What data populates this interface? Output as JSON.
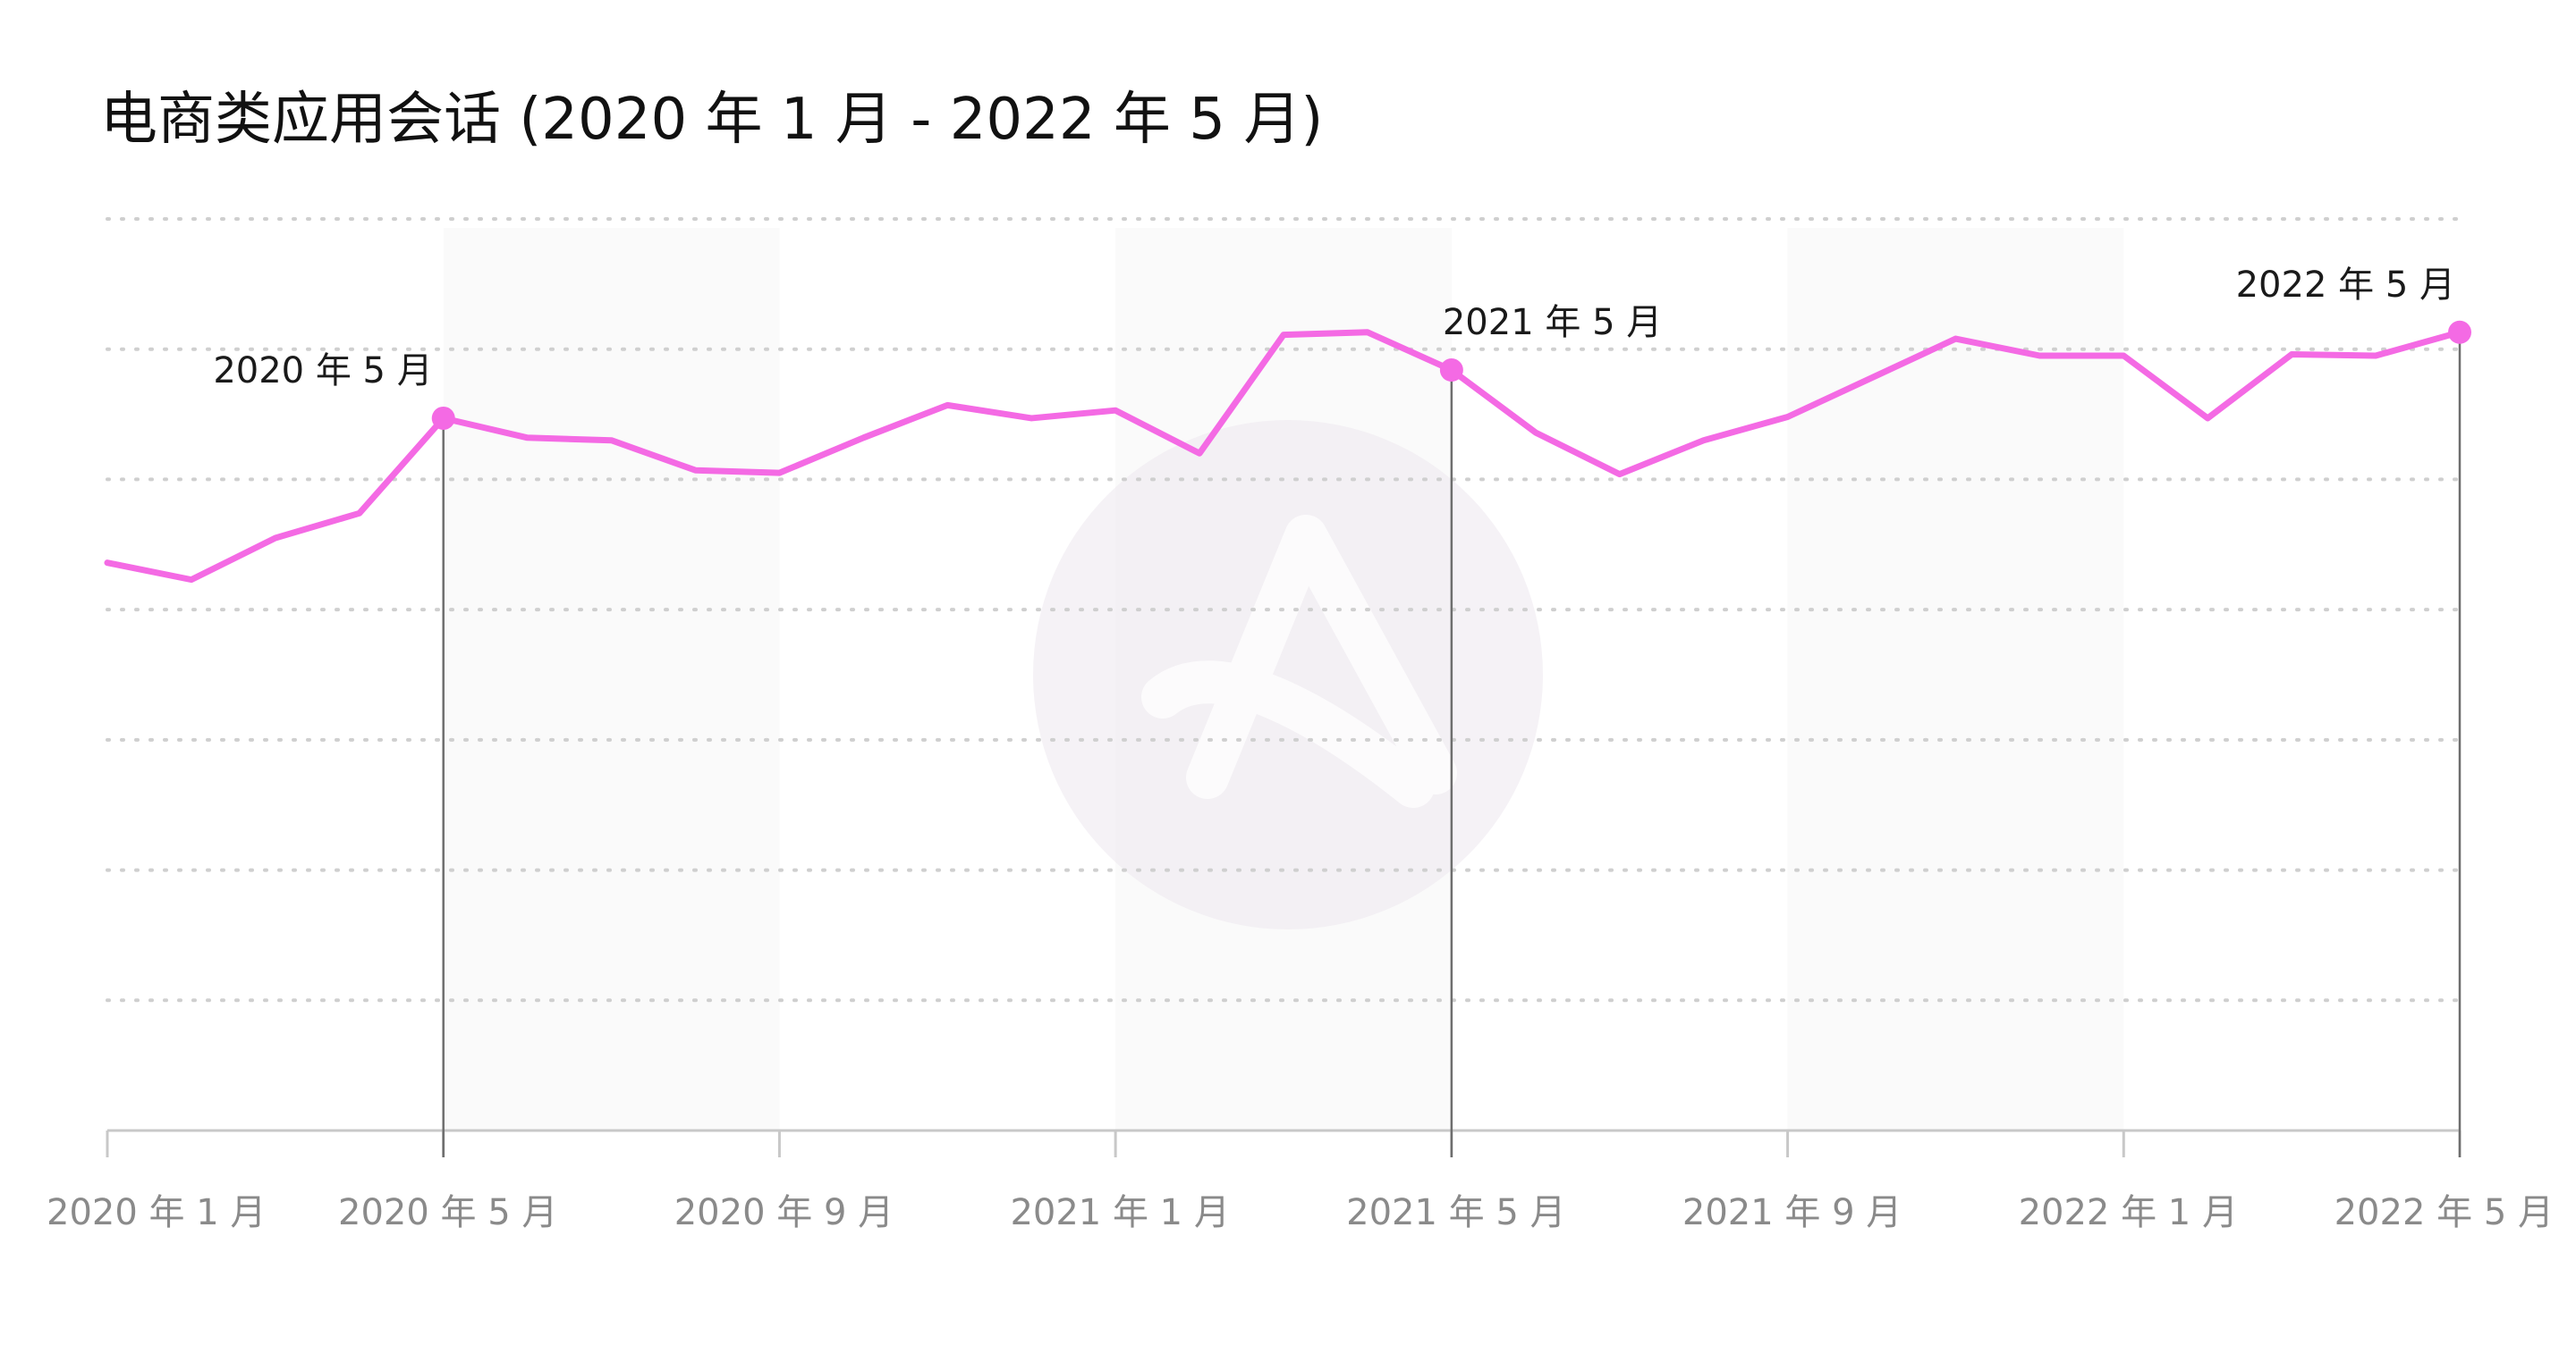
{
  "chart_data": {
    "type": "line",
    "title": "电商类应用会话 (2020 年 1 月 - 2022 年 5 月)",
    "xlabel": "",
    "ylabel": "",
    "y_tick_labels_shown": false,
    "grid": true,
    "colors": {
      "series": "#f46ae4",
      "band": "#fafafa",
      "watermark": "#ece7ee"
    },
    "x_ticks": [
      {
        "label": "2020 年 1 月",
        "index": 0
      },
      {
        "label": "2020 年 5 月",
        "index": 4
      },
      {
        "label": "2020 年 9 月",
        "index": 8
      },
      {
        "label": "2021 年 1 月",
        "index": 12
      },
      {
        "label": "2021 年 5 月",
        "index": 16
      },
      {
        "label": "2021 年 9 月",
        "index": 20
      },
      {
        "label": "2022 年 1 月",
        "index": 24
      },
      {
        "label": "2022 年 5 月",
        "index": 28
      }
    ],
    "categories": [
      "2020-01",
      "2020-02",
      "2020-03",
      "2020-04",
      "2020-05",
      "2020-06",
      "2020-07",
      "2020-08",
      "2020-09",
      "2020-10",
      "2020-11",
      "2020-12",
      "2021-01",
      "2021-02",
      "2021-03",
      "2021-04",
      "2021-05",
      "2021-06",
      "2021-07",
      "2021-08",
      "2021-09",
      "2021-10",
      "2021-11",
      "2021-12",
      "2022-01",
      "2022-02",
      "2022-03",
      "2022-04",
      "2022-05"
    ],
    "series": [
      {
        "values": [
          4.36,
          4.23,
          4.55,
          4.74,
          5.47,
          5.32,
          5.3,
          5.07,
          5.05,
          5.32,
          5.57,
          5.47,
          5.53,
          5.2,
          6.11,
          6.13,
          5.84,
          5.36,
          5.04,
          5.3,
          5.48,
          5.78,
          6.08,
          5.95,
          5.95,
          5.47,
          5.96,
          5.95,
          6.13
        ]
      }
    ],
    "ylim": [
      0,
      7
    ],
    "y_grid_values": [
      1,
      2,
      3,
      4,
      5,
      6,
      7
    ],
    "highlighted_points": [
      {
        "index": 4,
        "label": "2020 年 5 月"
      },
      {
        "index": 16,
        "label": "2021 年 5 月"
      },
      {
        "index": 28,
        "label": "2022 年 5 月"
      }
    ]
  }
}
